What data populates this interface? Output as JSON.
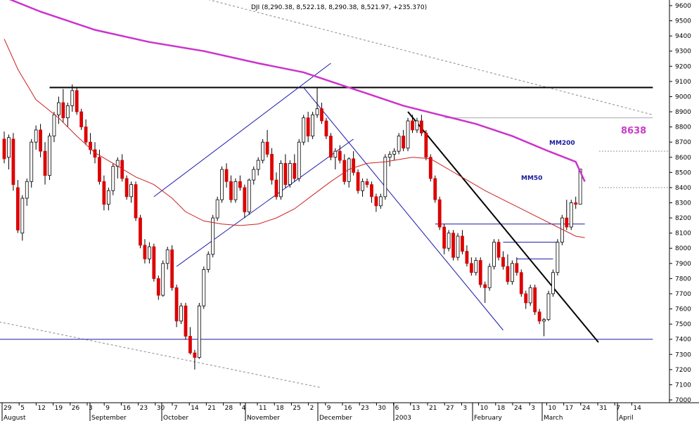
{
  "chart_data": {
    "type": "candlestick",
    "title": "DJI (8,290.38, 8,522.18, 8,290.38, 8,521.97, +235.370)",
    "ylim": [
      7000,
      9600
    ],
    "y_ticks": [
      7000,
      7100,
      7200,
      7300,
      7400,
      7500,
      7600,
      7700,
      7800,
      7900,
      8000,
      8100,
      8200,
      8300,
      8400,
      8500,
      8600,
      8700,
      8800,
      8900,
      9000,
      9100,
      9200,
      9300,
      9400,
      9500,
      9600
    ],
    "x_ticks": [
      "29",
      "5",
      "12",
      "19",
      "26",
      "3",
      "9",
      "16",
      "23",
      "30",
      "7",
      "14",
      "21",
      "28",
      "4",
      "11",
      "18",
      "25",
      "2",
      "9",
      "16",
      "23",
      "30",
      "6",
      "13",
      "21",
      "27",
      "3",
      "10",
      "18",
      "24",
      "3",
      "10",
      "17",
      "24",
      "31",
      "7",
      "14"
    ],
    "months": [
      "August",
      "September",
      "October",
      "November",
      "December",
      "2003",
      "February",
      "March",
      "April"
    ],
    "annotations": {
      "ma200_label": "MM200",
      "ma50_label": "MM50",
      "target_label": "8638"
    },
    "colors": {
      "down_candle": "#dd0000",
      "up_candle": "#ffffff",
      "ma200": "#cc33cc",
      "ma50": "#cc2222",
      "channel": "#1a1aaa",
      "downtrend": "#000000",
      "resistance": "#000000",
      "support": "#1a1aaa"
    },
    "series_candles": [
      {
        "o": 8720,
        "h": 8770,
        "l": 8560,
        "c": 8590
      },
      {
        "o": 8600,
        "h": 8750,
        "l": 8520,
        "c": 8730
      },
      {
        "o": 8720,
        "h": 8760,
        "l": 8380,
        "c": 8420
      },
      {
        "o": 8400,
        "h": 8450,
        "l": 8100,
        "c": 8120
      },
      {
        "o": 8100,
        "h": 8350,
        "l": 8050,
        "c": 8330
      },
      {
        "o": 8330,
        "h": 8460,
        "l": 8280,
        "c": 8440
      },
      {
        "o": 8440,
        "h": 8720,
        "l": 8400,
        "c": 8700
      },
      {
        "o": 8700,
        "h": 8810,
        "l": 8650,
        "c": 8780
      },
      {
        "o": 8780,
        "h": 8820,
        "l": 8600,
        "c": 8640
      },
      {
        "o": 8640,
        "h": 8700,
        "l": 8420,
        "c": 8480
      },
      {
        "o": 8480,
        "h": 8760,
        "l": 8450,
        "c": 8740
      },
      {
        "o": 8740,
        "h": 8900,
        "l": 8700,
        "c": 8880
      },
      {
        "o": 8880,
        "h": 9000,
        "l": 8820,
        "c": 8960
      },
      {
        "o": 8960,
        "h": 9050,
        "l": 8830,
        "c": 8860
      },
      {
        "o": 8860,
        "h": 8960,
        "l": 8800,
        "c": 8940
      },
      {
        "o": 8940,
        "h": 9080,
        "l": 8900,
        "c": 9040
      },
      {
        "o": 9040,
        "h": 9060,
        "l": 8880,
        "c": 8900
      },
      {
        "o": 8900,
        "h": 8920,
        "l": 8780,
        "c": 8800
      },
      {
        "o": 8800,
        "h": 8850,
        "l": 8680,
        "c": 8700
      },
      {
        "o": 8700,
        "h": 8760,
        "l": 8620,
        "c": 8650
      },
      {
        "o": 8650,
        "h": 8700,
        "l": 8560,
        "c": 8600
      },
      {
        "o": 8600,
        "h": 8650,
        "l": 8420,
        "c": 8440
      },
      {
        "o": 8440,
        "h": 8480,
        "l": 8250,
        "c": 8290
      },
      {
        "o": 8290,
        "h": 8400,
        "l": 8250,
        "c": 8380
      },
      {
        "o": 8380,
        "h": 8560,
        "l": 8350,
        "c": 8540
      },
      {
        "o": 8540,
        "h": 8600,
        "l": 8460,
        "c": 8580
      },
      {
        "o": 8580,
        "h": 8620,
        "l": 8440,
        "c": 8460
      },
      {
        "o": 8460,
        "h": 8480,
        "l": 8320,
        "c": 8340
      },
      {
        "o": 8340,
        "h": 8440,
        "l": 8300,
        "c": 8420
      },
      {
        "o": 8420,
        "h": 8440,
        "l": 8180,
        "c": 8200
      },
      {
        "o": 8200,
        "h": 8220,
        "l": 8000,
        "c": 8020
      },
      {
        "o": 8020,
        "h": 8060,
        "l": 7900,
        "c": 7930
      },
      {
        "o": 7930,
        "h": 8040,
        "l": 7900,
        "c": 8010
      },
      {
        "o": 8010,
        "h": 8030,
        "l": 7780,
        "c": 7800
      },
      {
        "o": 7800,
        "h": 7820,
        "l": 7660,
        "c": 7690
      },
      {
        "o": 7690,
        "h": 7920,
        "l": 7680,
        "c": 7900
      },
      {
        "o": 7900,
        "h": 8010,
        "l": 7860,
        "c": 7990
      },
      {
        "o": 7990,
        "h": 8020,
        "l": 7720,
        "c": 7740
      },
      {
        "o": 7740,
        "h": 7760,
        "l": 7480,
        "c": 7520
      },
      {
        "o": 7520,
        "h": 7640,
        "l": 7500,
        "c": 7620
      },
      {
        "o": 7620,
        "h": 7640,
        "l": 7400,
        "c": 7420
      },
      {
        "o": 7420,
        "h": 7480,
        "l": 7300,
        "c": 7310
      },
      {
        "o": 7310,
        "h": 7330,
        "l": 7200,
        "c": 7280
      },
      {
        "o": 7280,
        "h": 7640,
        "l": 7270,
        "c": 7620
      },
      {
        "o": 7620,
        "h": 7880,
        "l": 7600,
        "c": 7860
      },
      {
        "o": 7860,
        "h": 7980,
        "l": 7840,
        "c": 7960
      },
      {
        "o": 7960,
        "h": 8220,
        "l": 7940,
        "c": 8200
      },
      {
        "o": 8200,
        "h": 8340,
        "l": 8180,
        "c": 8320
      },
      {
        "o": 8320,
        "h": 8540,
        "l": 8300,
        "c": 8520
      },
      {
        "o": 8520,
        "h": 8560,
        "l": 8400,
        "c": 8440
      },
      {
        "o": 8440,
        "h": 8480,
        "l": 8300,
        "c": 8320
      },
      {
        "o": 8320,
        "h": 8460,
        "l": 8300,
        "c": 8440
      },
      {
        "o": 8440,
        "h": 8480,
        "l": 8380,
        "c": 8400
      },
      {
        "o": 8400,
        "h": 8420,
        "l": 8200,
        "c": 8240
      },
      {
        "o": 8240,
        "h": 8460,
        "l": 8220,
        "c": 8450
      },
      {
        "o": 8450,
        "h": 8540,
        "l": 8420,
        "c": 8520
      },
      {
        "o": 8520,
        "h": 8600,
        "l": 8480,
        "c": 8580
      },
      {
        "o": 8580,
        "h": 8720,
        "l": 8560,
        "c": 8700
      },
      {
        "o": 8700,
        "h": 8780,
        "l": 8600,
        "c": 8620
      },
      {
        "o": 8620,
        "h": 8660,
        "l": 8420,
        "c": 8450
      },
      {
        "o": 8450,
        "h": 8500,
        "l": 8320,
        "c": 8340
      },
      {
        "o": 8340,
        "h": 8580,
        "l": 8320,
        "c": 8560
      },
      {
        "o": 8560,
        "h": 8620,
        "l": 8400,
        "c": 8420
      },
      {
        "o": 8420,
        "h": 8580,
        "l": 8400,
        "c": 8560
      },
      {
        "o": 8560,
        "h": 8620,
        "l": 8440,
        "c": 8460
      },
      {
        "o": 8460,
        "h": 8720,
        "l": 8440,
        "c": 8700
      },
      {
        "o": 8700,
        "h": 8880,
        "l": 8680,
        "c": 8860
      },
      {
        "o": 8860,
        "h": 8900,
        "l": 8700,
        "c": 8740
      },
      {
        "o": 8740,
        "h": 8900,
        "l": 8720,
        "c": 8880
      },
      {
        "o": 8880,
        "h": 9060,
        "l": 8860,
        "c": 8920
      },
      {
        "o": 8920,
        "h": 8960,
        "l": 8820,
        "c": 8840
      },
      {
        "o": 8840,
        "h": 8860,
        "l": 8720,
        "c": 8740
      },
      {
        "o": 8740,
        "h": 8760,
        "l": 8580,
        "c": 8600
      },
      {
        "o": 8600,
        "h": 8660,
        "l": 8520,
        "c": 8640
      },
      {
        "o": 8640,
        "h": 8680,
        "l": 8560,
        "c": 8580
      },
      {
        "o": 8580,
        "h": 8620,
        "l": 8420,
        "c": 8440
      },
      {
        "o": 8440,
        "h": 8600,
        "l": 8400,
        "c": 8590
      },
      {
        "o": 8590,
        "h": 8640,
        "l": 8480,
        "c": 8500
      },
      {
        "o": 8500,
        "h": 8520,
        "l": 8360,
        "c": 8380
      },
      {
        "o": 8380,
        "h": 8460,
        "l": 8340,
        "c": 8440
      },
      {
        "o": 8440,
        "h": 8460,
        "l": 8400,
        "c": 8420
      },
      {
        "o": 8420,
        "h": 8440,
        "l": 8300,
        "c": 8340
      },
      {
        "o": 8340,
        "h": 8360,
        "l": 8240,
        "c": 8280
      },
      {
        "o": 8280,
        "h": 8360,
        "l": 8260,
        "c": 8340
      },
      {
        "o": 8340,
        "h": 8620,
        "l": 8320,
        "c": 8600
      },
      {
        "o": 8600,
        "h": 8640,
        "l": 8540,
        "c": 8620
      },
      {
        "o": 8620,
        "h": 8660,
        "l": 8580,
        "c": 8640
      },
      {
        "o": 8640,
        "h": 8760,
        "l": 8620,
        "c": 8740
      },
      {
        "o": 8740,
        "h": 8780,
        "l": 8640,
        "c": 8660
      },
      {
        "o": 8660,
        "h": 8860,
        "l": 8640,
        "c": 8840
      },
      {
        "o": 8840,
        "h": 8880,
        "l": 8760,
        "c": 8780
      },
      {
        "o": 8780,
        "h": 8860,
        "l": 8760,
        "c": 8840
      },
      {
        "o": 8840,
        "h": 8880,
        "l": 8740,
        "c": 8760
      },
      {
        "o": 8760,
        "h": 8780,
        "l": 8580,
        "c": 8600
      },
      {
        "o": 8600,
        "h": 8620,
        "l": 8440,
        "c": 8460
      },
      {
        "o": 8460,
        "h": 8480,
        "l": 8300,
        "c": 8320
      },
      {
        "o": 8320,
        "h": 8340,
        "l": 8120,
        "c": 8140
      },
      {
        "o": 8140,
        "h": 8160,
        "l": 7960,
        "c": 8000
      },
      {
        "o": 8000,
        "h": 8120,
        "l": 7980,
        "c": 8100
      },
      {
        "o": 8100,
        "h": 8120,
        "l": 7920,
        "c": 7940
      },
      {
        "o": 7940,
        "h": 8100,
        "l": 7920,
        "c": 8080
      },
      {
        "o": 8080,
        "h": 8120,
        "l": 7960,
        "c": 7980
      },
      {
        "o": 7980,
        "h": 8020,
        "l": 7880,
        "c": 7900
      },
      {
        "o": 7900,
        "h": 7940,
        "l": 7820,
        "c": 7840
      },
      {
        "o": 7840,
        "h": 7940,
        "l": 7820,
        "c": 7920
      },
      {
        "o": 7920,
        "h": 7940,
        "l": 7740,
        "c": 7760
      },
      {
        "o": 7760,
        "h": 7780,
        "l": 7640,
        "c": 7740
      },
      {
        "o": 7740,
        "h": 7900,
        "l": 7720,
        "c": 7880
      },
      {
        "o": 7880,
        "h": 8060,
        "l": 7860,
        "c": 8040
      },
      {
        "o": 8040,
        "h": 8060,
        "l": 7920,
        "c": 7940
      },
      {
        "o": 7940,
        "h": 7980,
        "l": 7860,
        "c": 7880
      },
      {
        "o": 7880,
        "h": 7960,
        "l": 7760,
        "c": 7780
      },
      {
        "o": 7780,
        "h": 7920,
        "l": 7760,
        "c": 7900
      },
      {
        "o": 7900,
        "h": 7940,
        "l": 7820,
        "c": 7840
      },
      {
        "o": 7840,
        "h": 7860,
        "l": 7680,
        "c": 7700
      },
      {
        "o": 7700,
        "h": 7720,
        "l": 7600,
        "c": 7640
      },
      {
        "o": 7640,
        "h": 7760,
        "l": 7620,
        "c": 7740
      },
      {
        "o": 7740,
        "h": 7760,
        "l": 7560,
        "c": 7580
      },
      {
        "o": 7580,
        "h": 7600,
        "l": 7500,
        "c": 7520
      },
      {
        "o": 7520,
        "h": 7540,
        "l": 7420,
        "c": 7530
      },
      {
        "o": 7530,
        "h": 7720,
        "l": 7520,
        "c": 7700
      },
      {
        "o": 7700,
        "h": 7860,
        "l": 7680,
        "c": 7840
      },
      {
        "o": 7840,
        "h": 8060,
        "l": 7820,
        "c": 8040
      },
      {
        "o": 8040,
        "h": 8220,
        "l": 8020,
        "c": 8200
      },
      {
        "o": 8200,
        "h": 8320,
        "l": 8120,
        "c": 8140
      },
      {
        "o": 8140,
        "h": 8320,
        "l": 8120,
        "c": 8300
      },
      {
        "o": 8300,
        "h": 8340,
        "l": 8260,
        "c": 8290
      },
      {
        "o": 8290,
        "h": 8522,
        "l": 8290,
        "c": 8522
      }
    ],
    "ma50_points": [
      [
        0,
        9380
      ],
      [
        3,
        9180
      ],
      [
        7,
        8980
      ],
      [
        12,
        8860
      ],
      [
        16,
        8740
      ],
      [
        20,
        8630
      ],
      [
        24,
        8560
      ],
      [
        29,
        8470
      ],
      [
        33,
        8420
      ],
      [
        37,
        8330
      ],
      [
        40,
        8240
      ],
      [
        44,
        8180
      ],
      [
        48,
        8160
      ],
      [
        52,
        8150
      ],
      [
        56,
        8160
      ],
      [
        60,
        8200
      ],
      [
        64,
        8260
      ],
      [
        68,
        8350
      ],
      [
        72,
        8440
      ],
      [
        76,
        8520
      ],
      [
        80,
        8560
      ],
      [
        84,
        8570
      ],
      [
        88,
        8590
      ],
      [
        90,
        8600
      ],
      [
        94,
        8590
      ],
      [
        98,
        8520
      ],
      [
        102,
        8450
      ],
      [
        106,
        8380
      ],
      [
        110,
        8320
      ],
      [
        114,
        8260
      ],
      [
        118,
        8200
      ],
      [
        122,
        8140
      ],
      [
        126,
        8080
      ],
      [
        128,
        8070
      ]
    ],
    "ma200_points": [
      [
        -2,
        9680
      ],
      [
        8,
        9560
      ],
      [
        20,
        9440
      ],
      [
        32,
        9360
      ],
      [
        44,
        9300
      ],
      [
        56,
        9220
      ],
      [
        66,
        9160
      ],
      [
        72,
        9100
      ],
      [
        80,
        9020
      ],
      [
        88,
        8940
      ],
      [
        96,
        8880
      ],
      [
        104,
        8820
      ],
      [
        112,
        8740
      ],
      [
        120,
        8640
      ],
      [
        126,
        8570
      ],
      [
        128,
        8440
      ]
    ],
    "channel_lines": [
      {
        "x1": 33,
        "y1": 8340,
        "x2": 72,
        "y2": 9220
      },
      {
        "x1": 38,
        "y1": 7880,
        "x2": 77,
        "y2": 8720
      }
    ],
    "downchannel_lines": [
      {
        "x1": 66,
        "y1": 9060,
        "x2": 110,
        "y2": 7460
      }
    ],
    "downtrend_line": {
      "x1": 89,
      "y1": 8900,
      "x2": 131,
      "y2": 7380
    },
    "resistance_line": {
      "x1": 10,
      "y1": 9060,
      "x2": 143,
      "y2": 9060
    },
    "support_line": {
      "x1": -2,
      "y1": 7400,
      "x2": 143,
      "y2": 7400
    },
    "target_line": {
      "x1": 97,
      "y1": 8860,
      "x2": 143,
      "y2": 8860
    },
    "far_dotted_lines": [
      {
        "x1": -2,
        "y1": 7520,
        "x2": 70,
        "y2": 7080
      },
      {
        "x1": 45,
        "y1": 9640,
        "x2": 143,
        "y2": 8880
      }
    ],
    "horizontal_breaks": [
      {
        "x1": 95,
        "x2": 128,
        "y": 8160
      },
      {
        "x1": 110,
        "x2": 122,
        "y": 8040
      },
      {
        "x1": 113,
        "x2": 121,
        "y": 7930
      }
    ],
    "marker_levels": [
      8400,
      8640
    ],
    "ylabel": "",
    "xlabel": ""
  }
}
